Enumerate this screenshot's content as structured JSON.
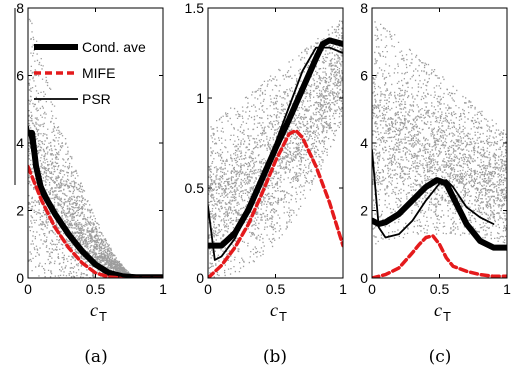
{
  "chart_data": [
    {
      "panel": "a",
      "type": "line",
      "caption": "(a)",
      "xlabel": "c",
      "xlabel_sub": "T",
      "xlim": [
        0,
        1
      ],
      "ylim": [
        0,
        8
      ],
      "xticks": [
        "0",
        "0.5",
        "1"
      ],
      "xtick_values": [
        0,
        0.5,
        1
      ],
      "yticks": [
        "0",
        "2",
        "4",
        "6",
        "8"
      ],
      "ytick_values": [
        0,
        2,
        4,
        6,
        8
      ],
      "legend": {
        "position": "top-right",
        "entries": [
          "Cond. ave",
          "MIFE",
          "PSR"
        ]
      },
      "scatter_color": "#8c8c8c",
      "series": [
        {
          "name": "Cond. ave",
          "style": "thick-black",
          "x": [
            0,
            0.03,
            0.06,
            0.1,
            0.2,
            0.3,
            0.4,
            0.5,
            0.6,
            0.7,
            0.8,
            1.0
          ],
          "y": [
            4.3,
            4.3,
            3.3,
            2.6,
            1.9,
            1.3,
            0.8,
            0.4,
            0.15,
            0.05,
            0.02,
            0.02
          ]
        },
        {
          "name": "MIFE",
          "style": "red-dashed",
          "x": [
            0,
            0.1,
            0.2,
            0.3,
            0.4,
            0.5,
            0.6,
            0.7,
            0.8,
            1.0
          ],
          "y": [
            3.3,
            2.3,
            1.5,
            0.9,
            0.45,
            0.15,
            0.03,
            0,
            0,
            0
          ]
        },
        {
          "name": "PSR",
          "style": "thin-black",
          "x": [
            0,
            0.05,
            0.1,
            0.2,
            0.3,
            0.4,
            0.5,
            0.6,
            0.7,
            0.8,
            1.0
          ],
          "y": [
            4.5,
            3.3,
            2.8,
            1.95,
            1.35,
            0.85,
            0.45,
            0.15,
            0.05,
            0.02,
            0.02
          ]
        }
      ]
    },
    {
      "panel": "b",
      "type": "line",
      "caption": "(b)",
      "xlabel": "c",
      "xlabel_sub": "T",
      "xlim": [
        0,
        1
      ],
      "ylim": [
        0,
        1.5
      ],
      "xticks": [
        "0",
        "0.5",
        "1"
      ],
      "xtick_values": [
        0,
        0.5,
        1
      ],
      "yticks": [
        "0",
        "0.5",
        "1",
        "1.5"
      ],
      "ytick_values": [
        0,
        0.5,
        1,
        1.5
      ],
      "scatter_color": "#8c8c8c",
      "series": [
        {
          "name": "Cond. ave",
          "style": "thick-black",
          "x": [
            0,
            0.1,
            0.2,
            0.3,
            0.4,
            0.5,
            0.6,
            0.7,
            0.8,
            0.85,
            0.9,
            1.0
          ],
          "y": [
            0.18,
            0.18,
            0.25,
            0.38,
            0.55,
            0.72,
            0.88,
            1.05,
            1.22,
            1.3,
            1.32,
            1.3
          ]
        },
        {
          "name": "MIFE",
          "style": "red-dashed",
          "x": [
            0,
            0.1,
            0.2,
            0.3,
            0.4,
            0.5,
            0.6,
            0.65,
            0.7,
            0.8,
            0.9,
            1.0
          ],
          "y": [
            0,
            0.07,
            0.17,
            0.3,
            0.47,
            0.65,
            0.8,
            0.82,
            0.78,
            0.62,
            0.42,
            0.18
          ]
        },
        {
          "name": "PSR",
          "style": "thin-black",
          "x": [
            0,
            0.05,
            0.1,
            0.2,
            0.3,
            0.4,
            0.5,
            0.6,
            0.7,
            0.8,
            0.9,
            1.0
          ],
          "y": [
            0.4,
            0.1,
            0.12,
            0.22,
            0.38,
            0.55,
            0.75,
            0.95,
            1.15,
            1.28,
            1.28,
            1.25
          ]
        }
      ]
    },
    {
      "panel": "c",
      "type": "line",
      "caption": "(c)",
      "xlabel": "c",
      "xlabel_sub": "T",
      "xlim": [
        0,
        1
      ],
      "ylim": [
        0,
        8
      ],
      "xticks": [
        "0",
        "0.5",
        "1"
      ],
      "xtick_values": [
        0,
        0.5,
        1
      ],
      "yticks": [
        "0",
        "2",
        "4",
        "6",
        "8"
      ],
      "ytick_values": [
        0,
        2,
        4,
        6,
        8
      ],
      "scatter_color": "#8c8c8c",
      "series": [
        {
          "name": "Cond. ave",
          "style": "thick-black",
          "x": [
            0,
            0.05,
            0.1,
            0.2,
            0.3,
            0.4,
            0.48,
            0.55,
            0.6,
            0.7,
            0.8,
            0.9,
            1.0
          ],
          "y": [
            1.7,
            1.6,
            1.65,
            1.9,
            2.3,
            2.7,
            2.9,
            2.8,
            2.4,
            1.6,
            1.1,
            0.9,
            0.9
          ]
        },
        {
          "name": "MIFE",
          "style": "red-dashed",
          "x": [
            0,
            0.1,
            0.2,
            0.3,
            0.35,
            0.4,
            0.45,
            0.5,
            0.55,
            0.6,
            0.7,
            0.8,
            0.9,
            1.0
          ],
          "y": [
            0,
            0.1,
            0.3,
            0.75,
            1.0,
            1.2,
            1.25,
            1.0,
            0.6,
            0.35,
            0.2,
            0.1,
            0.05,
            0.05
          ]
        },
        {
          "name": "PSR",
          "style": "thin-black",
          "x": [
            0,
            0.05,
            0.1,
            0.2,
            0.3,
            0.4,
            0.5,
            0.55,
            0.6,
            0.7,
            0.8,
            0.9
          ],
          "y": [
            3.8,
            1.5,
            1.2,
            1.3,
            1.7,
            2.3,
            2.8,
            2.9,
            2.7,
            2.1,
            1.8,
            1.6
          ]
        }
      ]
    }
  ]
}
